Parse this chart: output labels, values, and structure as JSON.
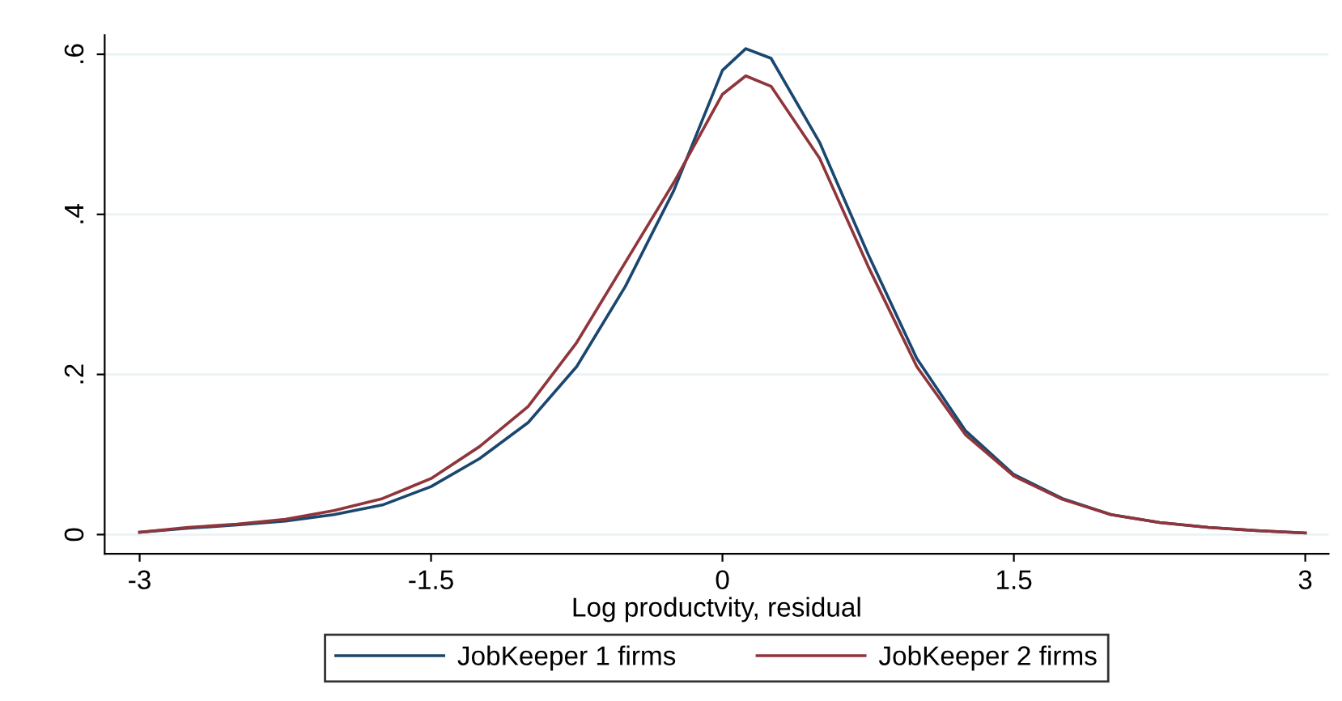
{
  "chart_data": {
    "type": "line",
    "xlabel": "Log productvity, residual",
    "x": [
      -3,
      -2.75,
      -2.5,
      -2.25,
      -2,
      -1.75,
      -1.5,
      -1.25,
      -1,
      -0.75,
      -0.5,
      -0.25,
      0,
      0.12,
      0.25,
      0.5,
      0.75,
      1,
      1.25,
      1.5,
      1.75,
      2,
      2.25,
      2.5,
      2.75,
      3
    ],
    "series": [
      {
        "name": "JobKeeper 1 firms",
        "color": "#1a476f",
        "values": [
          0.003,
          0.008,
          0.012,
          0.017,
          0.025,
          0.037,
          0.06,
          0.095,
          0.14,
          0.21,
          0.31,
          0.43,
          0.58,
          0.607,
          0.595,
          0.49,
          0.35,
          0.22,
          0.13,
          0.075,
          0.045,
          0.025,
          0.015,
          0.009,
          0.005,
          0.002
        ]
      },
      {
        "name": "JobKeeper 2 firms",
        "color": "#90353b",
        "values": [
          0.003,
          0.009,
          0.013,
          0.019,
          0.03,
          0.045,
          0.07,
          0.11,
          0.16,
          0.24,
          0.34,
          0.44,
          0.55,
          0.573,
          0.56,
          0.47,
          0.335,
          0.21,
          0.125,
          0.073,
          0.044,
          0.025,
          0.015,
          0.009,
          0.005,
          0.002
        ]
      }
    ],
    "xlim": [
      -3.18,
      3.12
    ],
    "ylim": [
      -0.024,
      0.624
    ],
    "xticks": [
      -3,
      -1.5,
      0,
      1.5,
      3
    ],
    "yticks": [
      {
        "value": 0,
        "label": "0"
      },
      {
        "value": 0.2,
        "label": ".2"
      },
      {
        "value": 0.4,
        "label": ".4"
      },
      {
        "value": 0.6,
        "label": ".6"
      }
    ],
    "grid": "y",
    "legend": "bottom",
    "marker": "none",
    "line_style": "solid"
  }
}
